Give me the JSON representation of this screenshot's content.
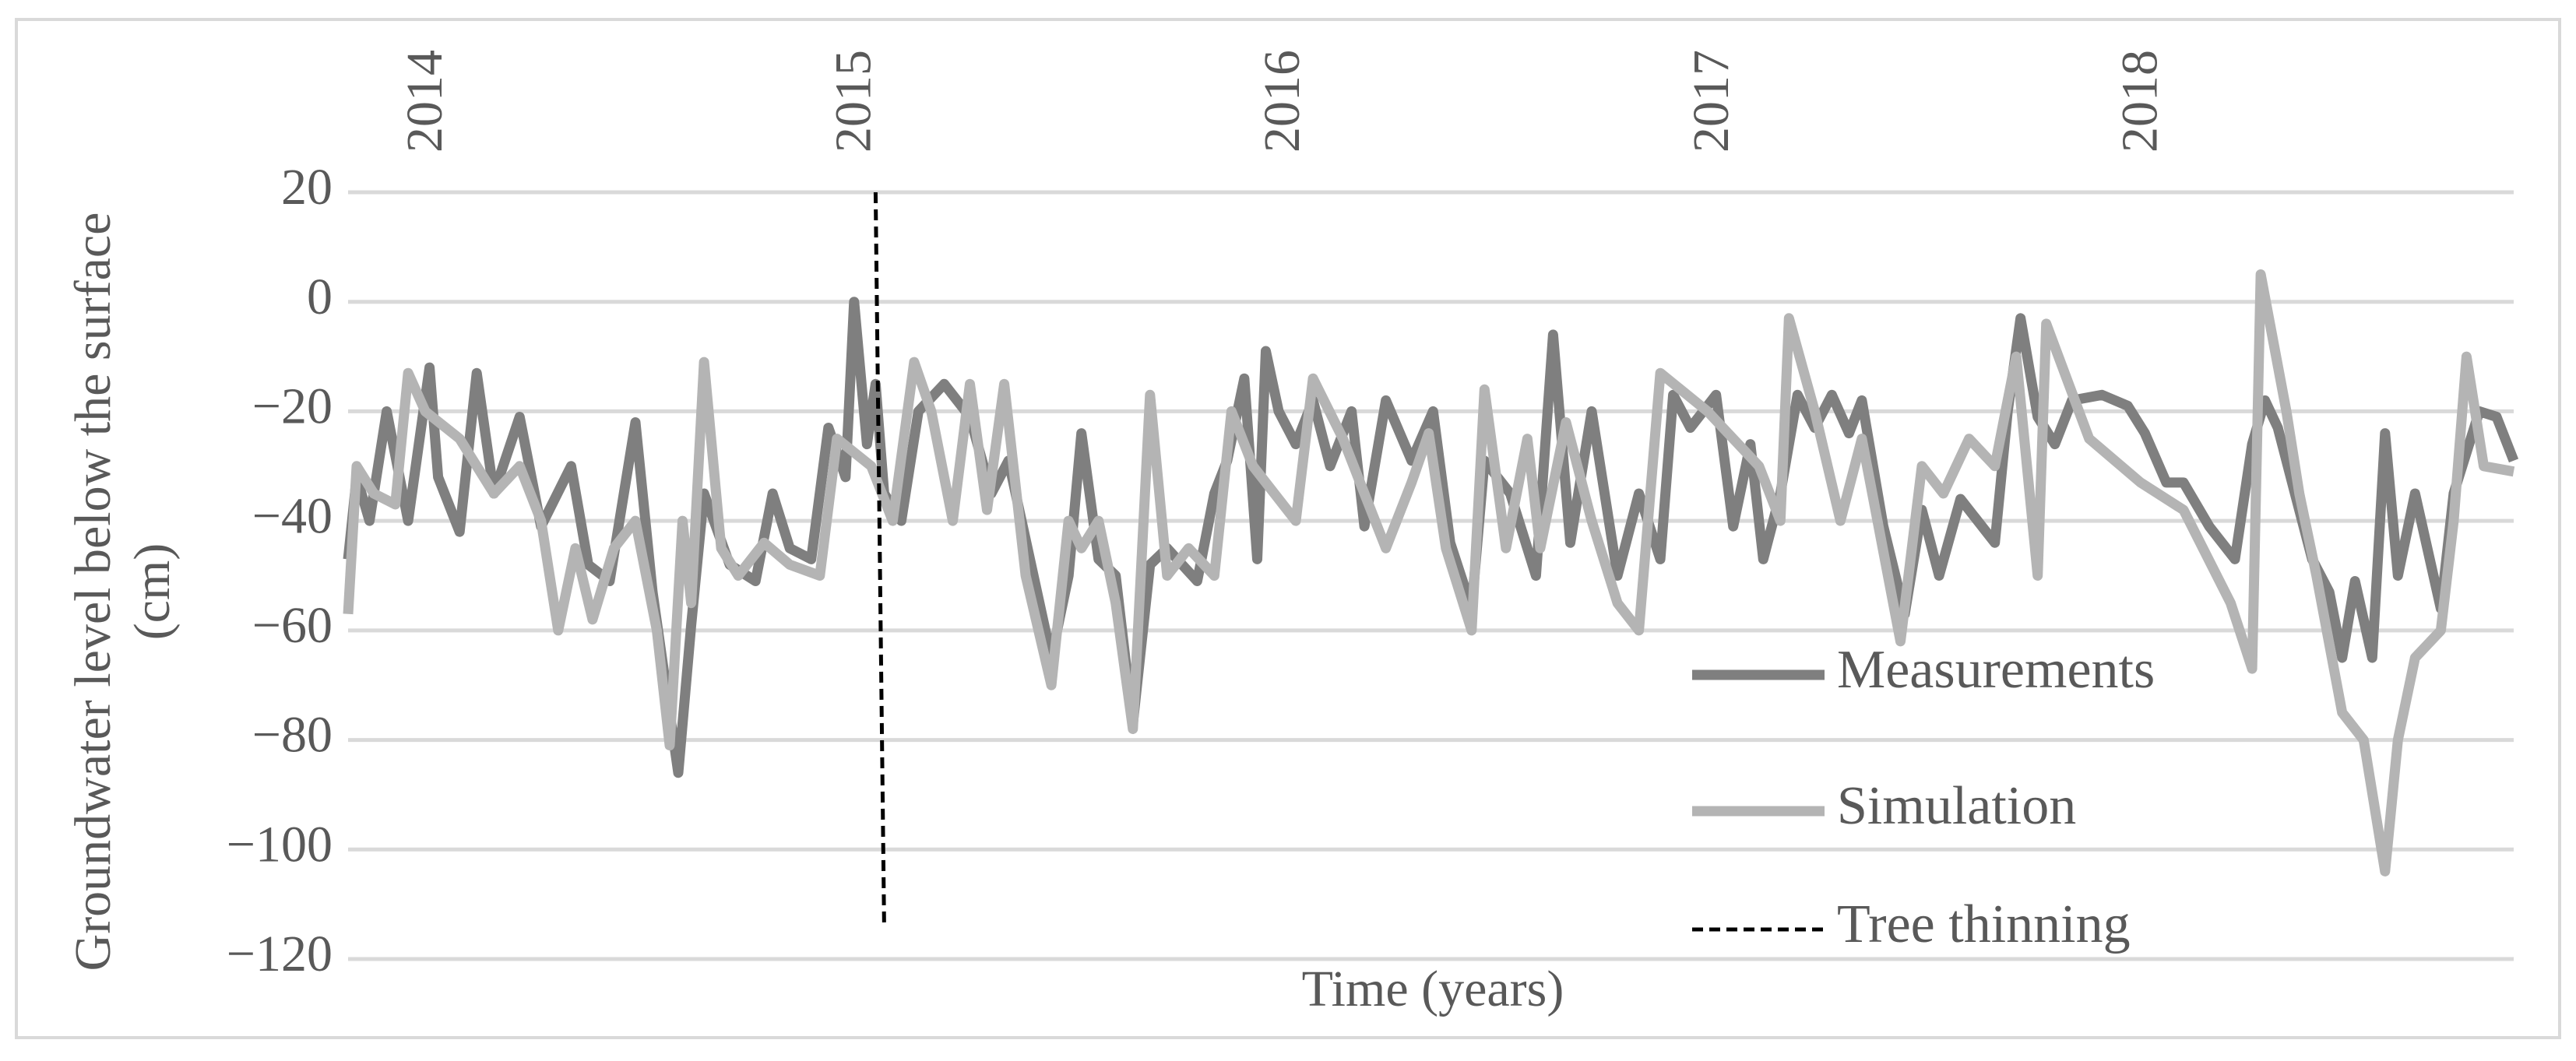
{
  "chart_data": {
    "type": "line",
    "y_label": "Groundwater level below the surface (cm)",
    "x_label": "Time (years)",
    "xlim": [
      2013.81,
      2018.86
    ],
    "xticks": [
      2014,
      2015,
      2016,
      2017,
      2018
    ],
    "ylim": [
      -120,
      20
    ],
    "yticks": [
      {
        "value": -120,
        "label": "−120"
      },
      {
        "value": -100,
        "label": "−100"
      },
      {
        "value": -80,
        "label": "−80"
      },
      {
        "value": -60,
        "label": "−60"
      },
      {
        "value": -40,
        "label": "−40"
      },
      {
        "value": -20,
        "label": "−20"
      },
      0,
      20
    ],
    "grid": true,
    "legend": "right",
    "series": [
      {
        "name": "Measurements",
        "color": "#7f7f7f",
        "style": "solid",
        "x": [
          2013.81,
          2013.83,
          2013.86,
          2013.9,
          2013.95,
          2014.0,
          2014.02,
          2014.07,
          2014.11,
          2014.15,
          2014.21,
          2014.26,
          2014.33,
          2014.37,
          2014.42,
          2014.48,
          2014.52,
          2014.58,
          2014.61,
          2014.64,
          2014.7,
          2014.76,
          2014.8,
          2014.84,
          2014.89,
          2014.93,
          2014.97,
          2014.99,
          2015.02,
          2015.04,
          2015.06,
          2015.1,
          2015.14,
          2015.2,
          2015.26,
          2015.31,
          2015.35,
          2015.4,
          2015.45,
          2015.49,
          2015.52,
          2015.56,
          2015.6,
          2015.64,
          2015.68,
          2015.72,
          2015.79,
          2015.83,
          2015.86,
          2015.9,
          2015.93,
          2015.95,
          2015.98,
          2016.02,
          2016.06,
          2016.1,
          2016.15,
          2016.18,
          2016.23,
          2016.29,
          2016.34,
          2016.38,
          2016.43,
          2016.46,
          2016.52,
          2016.58,
          2016.62,
          2016.66,
          2016.71,
          2016.77,
          2016.82,
          2016.87,
          2016.9,
          2016.94,
          2017.0,
          2017.04,
          2017.08,
          2017.11,
          2017.15,
          2017.19,
          2017.23,
          2017.27,
          2017.31,
          2017.34,
          2017.39,
          2017.44,
          2017.48,
          2017.52,
          2017.57,
          2017.65,
          2017.68,
          2017.71,
          2017.75,
          2017.79,
          2017.83,
          2017.9,
          2017.96,
          2018.0,
          2018.05,
          2018.09,
          2018.15,
          2018.21,
          2018.25,
          2018.28,
          2018.31,
          2018.35,
          2018.39,
          2018.43,
          2018.46,
          2018.49,
          2018.53,
          2018.56,
          2018.59,
          2018.63,
          2018.69,
          2018.72,
          2018.78,
          2018.82,
          2018.86
        ],
        "values": [
          -47,
          -32,
          -40,
          -20,
          -40,
          -12,
          -32,
          -42,
          -13,
          -35,
          -21,
          -41,
          -30,
          -48,
          -51,
          -22,
          -53,
          -86,
          -59,
          -35,
          -48,
          -51,
          -35,
          -45,
          -47,
          -23,
          -32,
          0,
          -26,
          -15,
          -35,
          -40,
          -20,
          -15,
          -21,
          -35,
          -29,
          -47,
          -65,
          -50,
          -24,
          -47,
          -50,
          -77,
          -48,
          -45,
          -51,
          -35,
          -29,
          -14,
          -47,
          -9,
          -20,
          -26,
          -18,
          -30,
          -20,
          -41,
          -18,
          -29,
          -20,
          -44,
          -56,
          -29,
          -35,
          -50,
          -6,
          -44,
          -20,
          -50,
          -35,
          -47,
          -17,
          -23,
          -17,
          -41,
          -26,
          -47,
          -35,
          -17,
          -23,
          -17,
          -24,
          -18,
          -41,
          -57,
          -38,
          -50,
          -36,
          -44,
          -20,
          -3,
          -21,
          -26,
          -18,
          -17,
          -19,
          -24,
          -33,
          -33,
          -41,
          -47,
          -26,
          -18,
          -23,
          -35,
          -47,
          -53,
          -65,
          -51,
          -65,
          -24,
          -50,
          -35,
          -56,
          -35,
          -20,
          -21,
          -29
        ]
      },
      {
        "name": "Simulation",
        "color": "#b4b4b4",
        "style": "solid",
        "x": [
          2013.81,
          2013.83,
          2013.87,
          2013.92,
          2013.95,
          2013.99,
          2014.07,
          2014.15,
          2014.21,
          2014.26,
          2014.3,
          2014.34,
          2014.38,
          2014.43,
          2014.48,
          2014.53,
          2014.56,
          2014.59,
          2014.61,
          2014.64,
          2014.68,
          2014.72,
          2014.78,
          2014.84,
          2014.91,
          2014.95,
          2015.03,
          2015.08,
          2015.13,
          2015.17,
          2015.22,
          2015.26,
          2015.3,
          2015.34,
          2015.39,
          2015.45,
          2015.49,
          2015.52,
          2015.56,
          2015.6,
          2015.64,
          2015.68,
          2015.72,
          2015.77,
          2015.83,
          2015.87,
          2015.92,
          2015.97,
          2016.02,
          2016.06,
          2016.13,
          2016.18,
          2016.23,
          2016.29,
          2016.33,
          2016.37,
          2016.43,
          2016.46,
          2016.51,
          2016.56,
          2016.59,
          2016.65,
          2016.71,
          2016.77,
          2016.82,
          2016.87,
          2016.98,
          2017.1,
          2017.15,
          2017.17,
          2017.23,
          2017.29,
          2017.34,
          2017.43,
          2017.48,
          2017.53,
          2017.59,
          2017.65,
          2017.7,
          2017.75,
          2017.77,
          2017.87,
          2017.99,
          2018.09,
          2018.2,
          2018.25,
          2018.27,
          2018.33,
          2018.36,
          2018.4,
          2018.46,
          2018.51,
          2018.56,
          2018.59,
          2018.63,
          2018.69,
          2018.72,
          2018.75,
          2018.79,
          2018.86
        ],
        "values": [
          -57,
          -30,
          -35,
          -37,
          -13,
          -20,
          -25,
          -35,
          -30,
          -40,
          -60,
          -45,
          -58,
          -45,
          -40,
          -60,
          -81,
          -40,
          -55,
          -11,
          -45,
          -50,
          -44,
          -48,
          -50,
          -25,
          -30,
          -40,
          -11,
          -20,
          -40,
          -15,
          -38,
          -15,
          -50,
          -70,
          -40,
          -45,
          -40,
          -55,
          -78,
          -17,
          -50,
          -45,
          -50,
          -20,
          -30,
          -35,
          -40,
          -14,
          -25,
          -35,
          -45,
          -33,
          -24,
          -45,
          -60,
          -16,
          -45,
          -25,
          -45,
          -22,
          -40,
          -55,
          -60,
          -13,
          -20,
          -30,
          -40,
          -3,
          -20,
          -40,
          -25,
          -62,
          -30,
          -35,
          -25,
          -30,
          -10,
          -50,
          -4,
          -25,
          -33,
          -38,
          -55,
          -67,
          5,
          -20,
          -35,
          -50,
          -75,
          -80,
          -104,
          -80,
          -65,
          -60,
          -40,
          -10,
          -30,
          -31
        ]
      },
      {
        "name": "Tree thinning",
        "color": "#000000",
        "style": "dashed",
        "x": [
          2015.04,
          2015.06
        ],
        "values": [
          20,
          -114
        ]
      }
    ]
  }
}
